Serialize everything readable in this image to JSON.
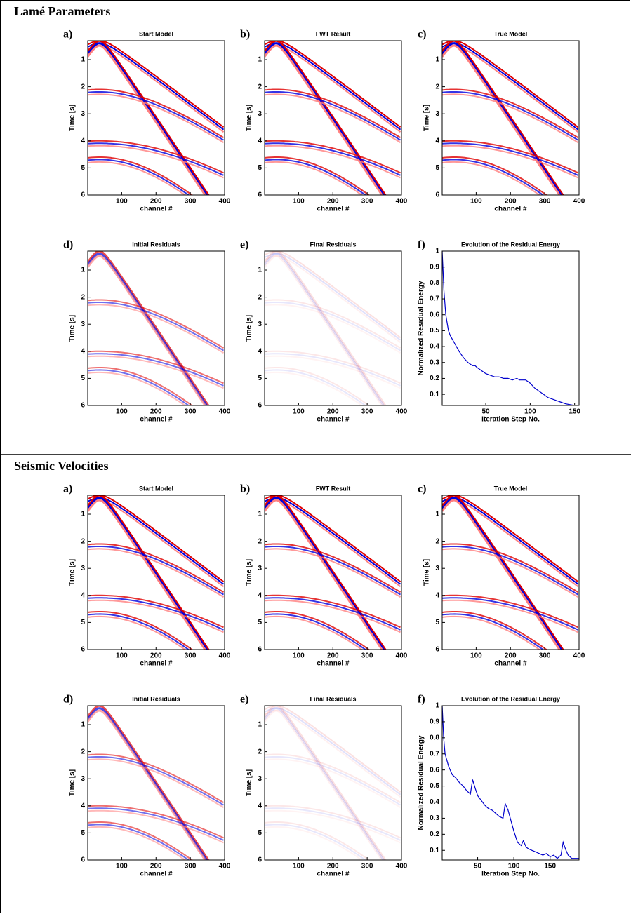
{
  "sections": [
    {
      "title": "Lamé Parameters",
      "chart_data": [
        {
          "type": "seismogram",
          "label": "a)",
          "title": "Start Model",
          "xlabel": "channel #",
          "ylabel": "Time [s]",
          "xlim": [
            1,
            400
          ],
          "xticks": [
            100,
            200,
            300,
            400
          ],
          "ylim": [
            0.3,
            6
          ],
          "yticks": [
            1,
            2,
            3,
            4,
            5,
            6
          ],
          "y_inverted": true
        },
        {
          "type": "seismogram",
          "label": "b)",
          "title": "FWT Result",
          "xlabel": "channel #",
          "ylabel": "Time [s]",
          "xlim": [
            1,
            400
          ],
          "xticks": [
            100,
            200,
            300,
            400
          ],
          "ylim": [
            0.3,
            6
          ],
          "yticks": [
            1,
            2,
            3,
            4,
            5,
            6
          ],
          "y_inverted": true
        },
        {
          "type": "seismogram",
          "label": "c)",
          "title": "True Model",
          "xlabel": "channel #",
          "ylabel": "Time [s]",
          "xlim": [
            1,
            400
          ],
          "xticks": [
            100,
            200,
            300,
            400
          ],
          "ylim": [
            0.3,
            6
          ],
          "yticks": [
            1,
            2,
            3,
            4,
            5,
            6
          ],
          "y_inverted": true
        },
        {
          "type": "seismogram",
          "label": "d)",
          "title": "Initial Residuals",
          "xlabel": "channel #",
          "ylabel": "Time [s]",
          "xlim": [
            1,
            400
          ],
          "xticks": [
            100,
            200,
            300,
            400
          ],
          "ylim": [
            0.3,
            6
          ],
          "yticks": [
            1,
            2,
            3,
            4,
            5,
            6
          ],
          "y_inverted": true
        },
        {
          "type": "seismogram",
          "label": "e)",
          "title": "Final Residuals",
          "xlabel": "channel #",
          "ylabel": "Time [s]",
          "xlim": [
            1,
            400
          ],
          "xticks": [
            100,
            200,
            300,
            400
          ],
          "ylim": [
            0.3,
            6
          ],
          "yticks": [
            1,
            2,
            3,
            4,
            5,
            6
          ],
          "y_inverted": true
        },
        {
          "type": "line",
          "label": "f)",
          "title": "Evolution of the Residual Energy",
          "xlabel": "Iteration Step No.",
          "ylabel": "Normalized Residual Energy",
          "color": "#0000cc",
          "x": [
            1,
            3,
            5,
            8,
            10,
            15,
            20,
            25,
            30,
            35,
            38,
            40,
            45,
            50,
            55,
            60,
            65,
            70,
            75,
            80,
            85,
            88,
            90,
            95,
            100,
            105,
            110,
            115,
            120,
            125,
            130,
            135,
            140,
            145,
            150,
            155
          ],
          "values": [
            1,
            0.75,
            0.6,
            0.5,
            0.47,
            0.42,
            0.37,
            0.33,
            0.3,
            0.28,
            0.28,
            0.27,
            0.25,
            0.23,
            0.22,
            0.21,
            0.21,
            0.2,
            0.2,
            0.19,
            0.2,
            0.19,
            0.19,
            0.19,
            0.17,
            0.14,
            0.12,
            0.1,
            0.08,
            0.07,
            0.06,
            0.05,
            0.04,
            0.035,
            0.03,
            0.03
          ],
          "xlim": [
            1,
            155
          ],
          "xticks": [
            50,
            100,
            150
          ],
          "ylim": [
            0.03,
            1
          ],
          "yticks": [
            0.1,
            0.2,
            0.3,
            0.4,
            0.5,
            0.6,
            0.7,
            0.8,
            0.9,
            1
          ]
        }
      ]
    },
    {
      "title": "Seismic Velocities",
      "chart_data": [
        {
          "type": "seismogram",
          "label": "a)",
          "title": "Start Model",
          "xlabel": "channel #",
          "ylabel": "Time [s]",
          "xlim": [
            1,
            400
          ],
          "xticks": [
            100,
            200,
            300,
            400
          ],
          "ylim": [
            0.3,
            6
          ],
          "yticks": [
            1,
            2,
            3,
            4,
            5,
            6
          ],
          "y_inverted": true
        },
        {
          "type": "seismogram",
          "label": "b)",
          "title": "FWT Result",
          "xlabel": "channel #",
          "ylabel": "Time [s]",
          "xlim": [
            1,
            400
          ],
          "xticks": [
            100,
            200,
            300,
            400
          ],
          "ylim": [
            0.3,
            6
          ],
          "yticks": [
            1,
            2,
            3,
            4,
            5,
            6
          ],
          "y_inverted": true
        },
        {
          "type": "seismogram",
          "label": "c)",
          "title": "True Model",
          "xlabel": "channel #",
          "ylabel": "Time [s]",
          "xlim": [
            1,
            400
          ],
          "xticks": [
            100,
            200,
            300,
            400
          ],
          "ylim": [
            0.3,
            6
          ],
          "yticks": [
            1,
            2,
            3,
            4,
            5,
            6
          ],
          "y_inverted": true
        },
        {
          "type": "seismogram",
          "label": "d)",
          "title": "Initial Residuals",
          "xlabel": "channel #",
          "ylabel": "Time [s]",
          "xlim": [
            1,
            400
          ],
          "xticks": [
            100,
            200,
            300,
            400
          ],
          "ylim": [
            0.3,
            6
          ],
          "yticks": [
            1,
            2,
            3,
            4,
            5,
            6
          ],
          "y_inverted": true
        },
        {
          "type": "seismogram",
          "label": "e)",
          "title": "Final Residuals",
          "xlabel": "channel #",
          "ylabel": "Time [s]",
          "xlim": [
            1,
            400
          ],
          "xticks": [
            100,
            200,
            300,
            400
          ],
          "ylim": [
            0.3,
            6
          ],
          "yticks": [
            1,
            2,
            3,
            4,
            5,
            6
          ],
          "y_inverted": true
        },
        {
          "type": "line",
          "label": "f)",
          "title": "Evolution of the Residual Energy",
          "xlabel": "Iteration Step No.",
          "ylabel": "Normalized Residual Energy",
          "color": "#0000cc",
          "x": [
            1,
            3,
            5,
            10,
            15,
            20,
            25,
            30,
            35,
            40,
            43,
            47,
            50,
            55,
            60,
            65,
            70,
            75,
            80,
            85,
            88,
            92,
            95,
            100,
            105,
            110,
            113,
            117,
            120,
            125,
            130,
            135,
            140,
            145,
            150,
            155,
            160,
            165,
            168,
            172,
            175,
            180,
            185,
            190
          ],
          "values": [
            1,
            0.8,
            0.7,
            0.62,
            0.57,
            0.55,
            0.52,
            0.5,
            0.47,
            0.45,
            0.54,
            0.48,
            0.44,
            0.41,
            0.38,
            0.36,
            0.35,
            0.33,
            0.31,
            0.3,
            0.39,
            0.35,
            0.3,
            0.22,
            0.15,
            0.13,
            0.16,
            0.12,
            0.11,
            0.1,
            0.09,
            0.08,
            0.07,
            0.08,
            0.06,
            0.07,
            0.05,
            0.07,
            0.15,
            0.1,
            0.07,
            0.05,
            0.05,
            0.05
          ],
          "xlim": [
            1,
            190
          ],
          "xticks": [
            50,
            100,
            150
          ],
          "ylim": [
            0.04,
            1
          ],
          "yticks": [
            0.1,
            0.2,
            0.3,
            0.4,
            0.5,
            0.6,
            0.7,
            0.8,
            0.9,
            1
          ]
        }
      ]
    }
  ]
}
